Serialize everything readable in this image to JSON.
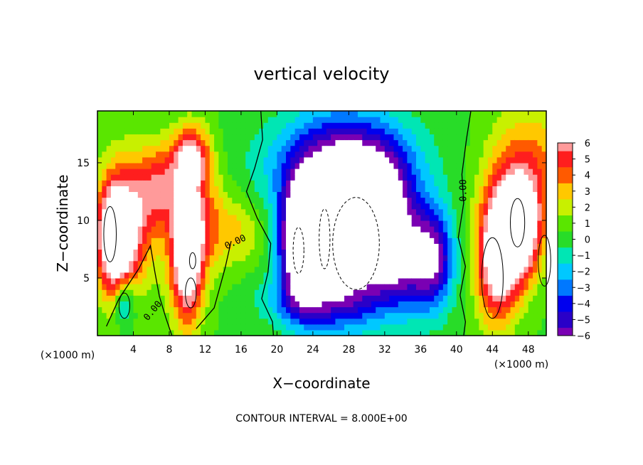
{
  "chart_data": {
    "type": "heatmap",
    "title": "vertical velocity",
    "xlabel": "X−coordinate",
    "ylabel": "Z−coordinate",
    "x_unit_left": "(×1000 m)",
    "x_unit_right": "(×1000 m)",
    "xlim": [
      0,
      50
    ],
    "ylim": [
      0,
      19.5
    ],
    "xticks": [
      4,
      8,
      12,
      16,
      20,
      24,
      28,
      32,
      36,
      40,
      44,
      48
    ],
    "yticks": [
      5,
      10,
      15
    ],
    "contour_interval_text": "CONTOUR INTERVAL = 8.000E+00",
    "contour_labels": [
      "0.00",
      "0.00",
      "0.00"
    ],
    "colorbar": {
      "range": [
        -6,
        6
      ],
      "ticks": [
        6,
        5,
        4,
        3,
        2,
        1,
        0,
        -1,
        -2,
        -3,
        -4,
        -5,
        -6
      ],
      "tick_labels": [
        "6",
        "5",
        "4",
        "3",
        "2",
        "1",
        "0",
        "−1",
        "−2",
        "−3",
        "−4",
        "−5",
        "−6"
      ],
      "colors": {
        "-6": "#7a00b3",
        "-5": "#2a00c8",
        "-4": "#0000ee",
        "-3": "#0078ff",
        "-2": "#00c8ff",
        "-1": "#00e6b4",
        "0": "#28dc28",
        "1": "#5ae600",
        "2": "#c8f000",
        "3": "#ffc800",
        "4": "#ff5a00",
        "5": "#ff1e1e",
        "6": "#ff9a9a"
      },
      "out_of_range_color": "#ffffff"
    },
    "features": [
      {
        "x": 2,
        "z": 8.5,
        "value": 9,
        "sx": 1.5,
        "sy": 3.5
      },
      {
        "x": 3,
        "z": 3,
        "value": -4,
        "sx": 0.8,
        "sy": 1.5
      },
      {
        "x": 4,
        "z": 10,
        "value": 4,
        "sx": 2.2,
        "sy": 4
      },
      {
        "x": 7,
        "z": 13,
        "value": 4,
        "sx": 1.8,
        "sy": 2.5
      },
      {
        "x": 10,
        "z": 7,
        "value": 9,
        "sx": 1.3,
        "sy": 4
      },
      {
        "x": 10.5,
        "z": 15.5,
        "value": 6,
        "sx": 1.5,
        "sy": 2
      },
      {
        "x": 12,
        "z": 10,
        "value": 3,
        "sx": 2,
        "sy": 3
      },
      {
        "x": 16,
        "z": 9,
        "value": 2,
        "sx": 2,
        "sy": 2
      },
      {
        "x": 22.5,
        "z": 8,
        "value": -8,
        "sx": 1.5,
        "sy": 3.5
      },
      {
        "x": 27,
        "z": 9.5,
        "value": -10,
        "sx": 3.5,
        "sy": 5
      },
      {
        "x": 32,
        "z": 10,
        "value": -7,
        "sx": 2.5,
        "sy": 4
      },
      {
        "x": 27,
        "z": 15,
        "value": -4,
        "sx": 6,
        "sy": 3
      },
      {
        "x": 35,
        "z": 6,
        "value": -4,
        "sx": 2.5,
        "sy": 3
      },
      {
        "x": 24,
        "z": 3,
        "value": -3,
        "sx": 4,
        "sy": 1.5
      },
      {
        "x": 37.5,
        "z": 7,
        "value": -5,
        "sx": 1.5,
        "sy": 3
      },
      {
        "x": 44.5,
        "z": 7,
        "value": 8,
        "sx": 1.6,
        "sy": 4
      },
      {
        "x": 47,
        "z": 9,
        "value": 9,
        "sx": 1.5,
        "sy": 3
      },
      {
        "x": 48,
        "z": 14,
        "value": 4,
        "sx": 3,
        "sy": 4
      }
    ]
  }
}
